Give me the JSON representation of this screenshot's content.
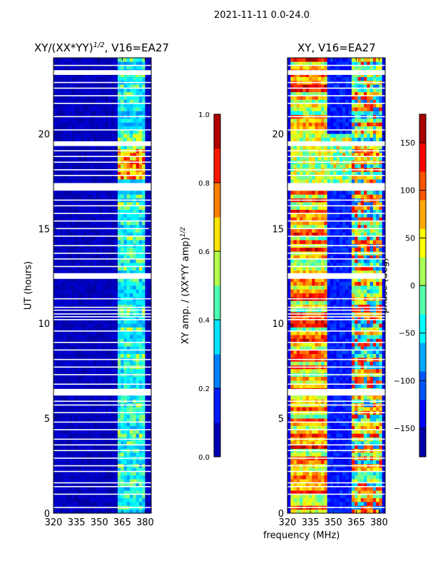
{
  "chart_data": [
    {
      "type": "heatmap",
      "suptitle": "2021-11-11 0.0-24.0",
      "title": "XY/(XX*YY)^1/2, V16=EA27",
      "title_main": "XY/(XX*YY)",
      "title_sup": "1/2",
      "title_tail": ", V16=EA27",
      "xlabel": "",
      "ylabel": "UT (hours)",
      "xlim": [
        320,
        384
      ],
      "ylim": [
        0,
        24
      ],
      "xticks": [
        320,
        335,
        350,
        365,
        380
      ],
      "yticks": [
        0,
        5,
        10,
        15,
        20
      ],
      "colorbar": {
        "label": "XY amp. / (XX*YY amp)^1/2",
        "label_main": "XY amp. / (XX*YY amp)",
        "label_sup": "1/2",
        "range": [
          0.0,
          1.0
        ],
        "ticks": [
          "0.0",
          "0.2",
          "0.4",
          "0.6",
          "0.8",
          "1.0"
        ],
        "colormap": "jet"
      },
      "value_description": {
        "background_low": 0.05,
        "band_freq_range_mhz": [
          362,
          380
        ],
        "band_typical": 0.4,
        "high_band_ut": [
          17.5,
          19.3
        ],
        "high_band_value": 0.8
      }
    },
    {
      "type": "heatmap",
      "title": "XY, V16=EA27",
      "xlabel": "frequency (MHz)",
      "ylabel": "",
      "xlim": [
        320,
        384
      ],
      "ylim": [
        0,
        24
      ],
      "xticks": [
        320,
        335,
        350,
        365,
        380
      ],
      "yticks": [
        0,
        5,
        10,
        15,
        20
      ],
      "colorbar": {
        "label": "phase (deg)",
        "range": [
          -180,
          180
        ],
        "ticks": [
          "150",
          "100",
          "50",
          "0",
          "−50",
          "−100",
          "−150"
        ],
        "tick_values": [
          150,
          100,
          50,
          0,
          -50,
          -100,
          -150
        ],
        "colormap": "jet"
      }
    }
  ],
  "flagged_ut_gaps": [
    [
      6.2,
      6.55
    ],
    [
      12.35,
      12.65
    ],
    [
      17.0,
      17.4
    ],
    [
      19.35,
      19.6
    ],
    [
      23.1,
      23.35
    ]
  ],
  "flagged_ut_lines": [
    0.3,
    1.0,
    1.4,
    1.6,
    2.2,
    2.5,
    2.9,
    3.3,
    3.6,
    3.9,
    4.4,
    4.8,
    5.3,
    5.7,
    5.9,
    6.8,
    7.3,
    7.7,
    8.1,
    8.6,
    9.0,
    9.6,
    10.2,
    10.35,
    10.5,
    10.7,
    10.85,
    11.3,
    13.0,
    13.4,
    13.7,
    14.1,
    14.6,
    15.0,
    15.4,
    15.8,
    16.2,
    16.5,
    17.8,
    18.1,
    18.5,
    18.8,
    19.1,
    20.2,
    20.9,
    21.6,
    22.0,
    22.4,
    22.7,
    23.6
  ]
}
